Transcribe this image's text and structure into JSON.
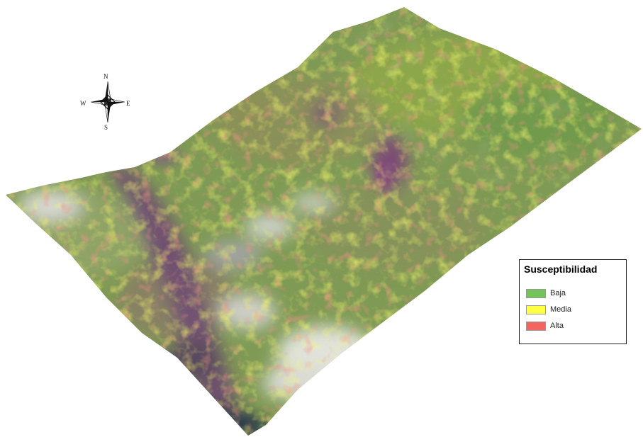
{
  "compass": {
    "north": "N",
    "south": "S",
    "east": "E",
    "west": "W"
  },
  "legend": {
    "title": "Susceptibilidad",
    "items": [
      {
        "label": "Baja",
        "color": "#73c35a"
      },
      {
        "label": "Media",
        "color": "#ffff44"
      },
      {
        "label": "Alta",
        "color": "#f26560"
      }
    ]
  },
  "colors": {
    "terrain_green": "#7c9a52",
    "valley_purple": "#7a4a7a",
    "cloud_white": "#eeeeee",
    "background": "#ffffff"
  }
}
